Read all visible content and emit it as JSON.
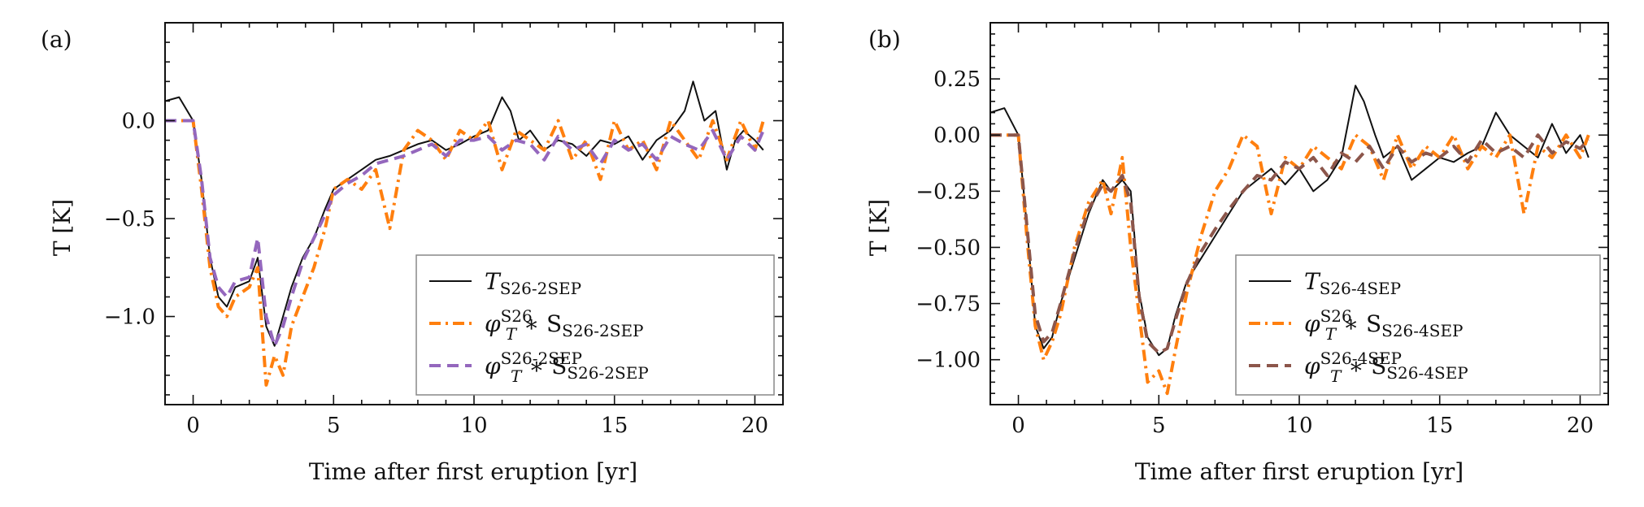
{
  "chart_data": [
    {
      "type": "line",
      "panel_label": "(a)",
      "xlabel": "Time after first eruption [yr]",
      "ylabel": "T [K]",
      "xlim": [
        -1,
        21
      ],
      "ylim": [
        -1.45,
        0.5
      ],
      "xticks": [
        0,
        5,
        10,
        15,
        20
      ],
      "yticks": [
        0.0,
        -0.5,
        -1.0
      ],
      "ytick_labels": [
        "0.0",
        "−0.5",
        "−1.0"
      ],
      "legend_position": "lower-right",
      "series": [
        {
          "name": "T_S26-2SEP",
          "legend": {
            "base": "T",
            "sub": "S26-2SEP",
            "rest": ""
          },
          "color": "#111111",
          "style": "solid",
          "x": [
            -1,
            -0.5,
            0,
            0.3,
            0.6,
            0.9,
            1.2,
            1.5,
            2.0,
            2.3,
            2.6,
            2.9,
            3.2,
            3.5,
            3.9,
            4.3,
            4.7,
            5.0,
            5.5,
            6.0,
            6.5,
            7.0,
            7.5,
            8.0,
            8.5,
            9.0,
            9.5,
            10.0,
            10.5,
            11.0,
            11.3,
            11.6,
            12.0,
            12.5,
            13.0,
            13.5,
            14.0,
            14.5,
            15.0,
            15.5,
            16.0,
            16.5,
            17.0,
            17.5,
            17.8,
            18.2,
            18.6,
            19.0,
            19.3,
            19.6,
            20.0,
            20.3
          ],
          "y": [
            0.1,
            0.12,
            0.0,
            -0.3,
            -0.7,
            -0.9,
            -0.95,
            -0.85,
            -0.82,
            -0.7,
            -1.05,
            -1.15,
            -1.0,
            -0.85,
            -0.7,
            -0.6,
            -0.45,
            -0.35,
            -0.3,
            -0.25,
            -0.2,
            -0.18,
            -0.15,
            -0.12,
            -0.1,
            -0.15,
            -0.12,
            -0.08,
            -0.05,
            0.12,
            0.05,
            -0.1,
            -0.05,
            -0.15,
            -0.1,
            -0.12,
            -0.18,
            -0.1,
            -0.12,
            -0.08,
            -0.2,
            -0.1,
            -0.05,
            0.05,
            0.2,
            0.0,
            0.05,
            -0.25,
            -0.1,
            -0.05,
            -0.1,
            -0.15
          ]
        },
        {
          "name": "phi_T^S26 * S_S26-2SEP",
          "legend": {
            "base": "φ",
            "sub": "T",
            "sup": "S26",
            "rest": " ∗ S",
            "sub2": "S26-2SEP"
          },
          "color": "#ff7f0e",
          "style": "dashdot",
          "x": [
            -1,
            -0.5,
            0,
            0.3,
            0.6,
            0.9,
            1.2,
            1.5,
            2.0,
            2.3,
            2.6,
            2.9,
            3.2,
            3.5,
            3.9,
            4.3,
            4.7,
            5.0,
            5.5,
            6.0,
            6.5,
            7.0,
            7.5,
            8.0,
            8.5,
            9.0,
            9.5,
            10.0,
            10.5,
            11.0,
            11.5,
            12.0,
            12.5,
            13.0,
            13.5,
            14.0,
            14.5,
            15.0,
            15.5,
            16.0,
            16.5,
            17.0,
            17.5,
            18.0,
            18.5,
            19.0,
            19.5,
            20.0,
            20.3
          ],
          "y": [
            0.0,
            0.0,
            0.0,
            -0.35,
            -0.75,
            -0.95,
            -1.0,
            -0.9,
            -0.85,
            -0.75,
            -1.35,
            -1.2,
            -1.3,
            -1.05,
            -0.9,
            -0.75,
            -0.55,
            -0.35,
            -0.3,
            -0.35,
            -0.25,
            -0.55,
            -0.15,
            -0.05,
            -0.1,
            -0.2,
            -0.05,
            -0.1,
            0.0,
            -0.25,
            -0.05,
            -0.1,
            -0.15,
            0.0,
            -0.2,
            -0.1,
            -0.3,
            0.0,
            -0.15,
            -0.1,
            -0.25,
            0.0,
            -0.1,
            -0.2,
            0.0,
            -0.2,
            0.0,
            -0.15,
            0.0
          ]
        },
        {
          "name": "phi_T^S26-2SEP * S_S26-2SEP",
          "legend": {
            "base": "φ",
            "sub": "T",
            "sup": "S26-2SEP",
            "rest": " ∗ S",
            "sub2": "S26-2SEP"
          },
          "color": "#9467bd",
          "style": "dashed",
          "x": [
            -1,
            -0.5,
            0,
            0.3,
            0.6,
            0.9,
            1.2,
            1.5,
            2.0,
            2.3,
            2.6,
            2.9,
            3.2,
            3.5,
            3.9,
            4.3,
            4.7,
            5.0,
            5.5,
            6.0,
            6.5,
            7.0,
            7.5,
            8.0,
            8.5,
            9.0,
            9.5,
            10.0,
            10.5,
            11.0,
            11.5,
            12.0,
            12.5,
            13.0,
            13.5,
            14.0,
            14.5,
            15.0,
            15.5,
            16.0,
            16.5,
            17.0,
            17.5,
            18.0,
            18.5,
            19.0,
            19.5,
            20.0,
            20.3
          ],
          "y": [
            0.0,
            0.0,
            0.0,
            -0.3,
            -0.7,
            -0.85,
            -0.9,
            -0.82,
            -0.8,
            -0.6,
            -1.0,
            -1.15,
            -1.05,
            -0.9,
            -0.72,
            -0.6,
            -0.48,
            -0.38,
            -0.32,
            -0.28,
            -0.22,
            -0.2,
            -0.18,
            -0.15,
            -0.12,
            -0.18,
            -0.1,
            -0.1,
            -0.08,
            -0.15,
            -0.1,
            -0.12,
            -0.2,
            -0.08,
            -0.15,
            -0.12,
            -0.22,
            -0.1,
            -0.15,
            -0.12,
            -0.2,
            -0.08,
            -0.12,
            -0.15,
            -0.05,
            -0.2,
            -0.08,
            -0.15,
            -0.05
          ]
        }
      ]
    },
    {
      "type": "line",
      "panel_label": "(b)",
      "xlabel": "Time after first eruption [yr]",
      "ylabel": "T [K]",
      "xlim": [
        -1,
        21
      ],
      "ylim": [
        -1.2,
        0.5
      ],
      "xticks": [
        0,
        5,
        10,
        15,
        20
      ],
      "yticks": [
        0.25,
        0.0,
        -0.25,
        -0.5,
        -0.75,
        -1.0
      ],
      "ytick_labels": [
        "0.25",
        "0.00",
        "−0.25",
        "−0.50",
        "−0.75",
        "−1.00"
      ],
      "legend_position": "lower-right",
      "series": [
        {
          "name": "T_S26-4SEP",
          "legend": {
            "base": "T",
            "sub": "S26-4SEP",
            "rest": ""
          },
          "color": "#111111",
          "style": "solid",
          "x": [
            -1,
            -0.5,
            0,
            0.3,
            0.6,
            0.9,
            1.2,
            1.5,
            2.0,
            2.5,
            3.0,
            3.3,
            3.7,
            4.0,
            4.3,
            4.6,
            5.0,
            5.3,
            5.6,
            6.0,
            6.5,
            7.0,
            7.5,
            8.0,
            8.5,
            9.0,
            9.5,
            10.0,
            10.5,
            11.0,
            11.5,
            12.0,
            12.3,
            12.7,
            13.0,
            13.5,
            14.0,
            14.5,
            15.0,
            15.5,
            16.0,
            16.5,
            17.0,
            17.5,
            18.0,
            18.5,
            19.0,
            19.5,
            20.0,
            20.3
          ],
          "y": [
            0.1,
            0.12,
            0.0,
            -0.4,
            -0.85,
            -0.95,
            -0.9,
            -0.75,
            -0.55,
            -0.35,
            -0.2,
            -0.25,
            -0.2,
            -0.25,
            -0.7,
            -0.9,
            -0.98,
            -0.95,
            -0.8,
            -0.65,
            -0.55,
            -0.45,
            -0.35,
            -0.25,
            -0.2,
            -0.15,
            -0.22,
            -0.15,
            -0.25,
            -0.2,
            -0.1,
            0.22,
            0.15,
            0.0,
            -0.1,
            -0.05,
            -0.2,
            -0.15,
            -0.1,
            -0.12,
            -0.08,
            -0.05,
            0.1,
            0.0,
            -0.05,
            -0.1,
            0.05,
            -0.08,
            0.0,
            -0.1
          ]
        },
        {
          "name": "phi_T^S26 * S_S26-4SEP",
          "legend": {
            "base": "φ",
            "sub": "T",
            "sup": "S26",
            "rest": " ∗ S",
            "sub2": "S26-4SEP"
          },
          "color": "#ff7f0e",
          "style": "dashdot",
          "x": [
            -1,
            -0.5,
            0,
            0.3,
            0.6,
            0.9,
            1.2,
            1.5,
            2.0,
            2.5,
            3.0,
            3.3,
            3.7,
            4.0,
            4.3,
            4.6,
            5.0,
            5.3,
            5.6,
            6.0,
            6.5,
            7.0,
            7.5,
            8.0,
            8.5,
            9.0,
            9.5,
            10.0,
            10.5,
            11.0,
            11.5,
            12.0,
            12.5,
            13.0,
            13.5,
            14.0,
            14.5,
            15.0,
            15.5,
            16.0,
            16.5,
            17.0,
            17.5,
            18.0,
            18.5,
            19.0,
            19.5,
            20.0,
            20.3
          ],
          "y": [
            0.0,
            0.0,
            0.0,
            -0.45,
            -0.85,
            -1.0,
            -0.92,
            -0.8,
            -0.5,
            -0.3,
            -0.2,
            -0.35,
            -0.1,
            -0.5,
            -0.8,
            -1.1,
            -1.05,
            -1.15,
            -0.95,
            -0.7,
            -0.45,
            -0.25,
            -0.15,
            0.0,
            -0.05,
            -0.35,
            -0.1,
            -0.15,
            -0.05,
            -0.1,
            -0.15,
            0.0,
            -0.05,
            -0.2,
            0.0,
            -0.15,
            -0.05,
            -0.1,
            0.0,
            -0.15,
            -0.05,
            -0.1,
            0.0,
            -0.35,
            -0.05,
            -0.1,
            0.0,
            -0.1,
            0.0
          ]
        },
        {
          "name": "phi_T^S26-4SEP * S_S26-4SEP",
          "legend": {
            "base": "φ",
            "sub": "T",
            "sup": "S26-4SEP",
            "rest": " ∗ S",
            "sub2": "S26-4SEP"
          },
          "color": "#8c564b",
          "style": "dashed",
          "x": [
            -1,
            -0.5,
            0,
            0.3,
            0.6,
            0.9,
            1.2,
            1.5,
            2.0,
            2.5,
            3.0,
            3.3,
            3.7,
            4.0,
            4.3,
            4.6,
            5.0,
            5.3,
            5.6,
            6.0,
            6.5,
            7.0,
            7.5,
            8.0,
            8.5,
            9.0,
            9.5,
            10.0,
            10.5,
            11.0,
            11.5,
            12.0,
            12.5,
            13.0,
            13.5,
            14.0,
            14.5,
            15.0,
            15.5,
            16.0,
            16.5,
            17.0,
            17.5,
            18.0,
            18.5,
            19.0,
            19.5,
            20.0,
            20.3
          ],
          "y": [
            0.0,
            0.0,
            0.0,
            -0.4,
            -0.8,
            -0.92,
            -0.88,
            -0.75,
            -0.52,
            -0.33,
            -0.22,
            -0.25,
            -0.18,
            -0.3,
            -0.72,
            -0.92,
            -0.97,
            -0.95,
            -0.82,
            -0.66,
            -0.52,
            -0.42,
            -0.33,
            -0.25,
            -0.18,
            -0.2,
            -0.12,
            -0.15,
            -0.1,
            -0.18,
            -0.08,
            -0.12,
            -0.05,
            -0.15,
            -0.05,
            -0.12,
            -0.08,
            -0.1,
            -0.05,
            -0.12,
            -0.02,
            -0.08,
            -0.05,
            -0.1,
            0.0,
            -0.08,
            -0.03,
            -0.06,
            -0.02
          ]
        }
      ]
    }
  ]
}
